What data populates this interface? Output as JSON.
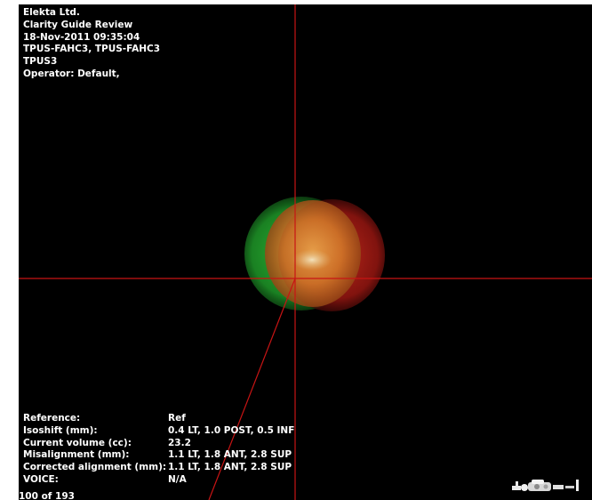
{
  "header": {
    "company": "Elekta Ltd.",
    "application": "Clarity Guide Review",
    "datetime": "18-Nov-2011 09:35:04",
    "patient_ids": "TPUS-FAHC3, TPUS-FAHC3",
    "session": "TPUS3",
    "operator": "Operator: Default,"
  },
  "status": {
    "rows": [
      {
        "label": "Reference:",
        "value": "Ref"
      },
      {
        "label": "Isoshift (mm):",
        "value": "0.4 LT, 1.0 POST, 0.5 INF"
      },
      {
        "label": "Current volume (cc):",
        "value": "23.2"
      },
      {
        "label": "Misalignment (mm):",
        "value": "1.1 LT, 1.8 ANT, 2.8 SUP"
      },
      {
        "label": "Corrected alignment (mm):",
        "value": "1.1 LT, 1.8 ANT, 2.8 SUP"
      },
      {
        "label": "VOICE:",
        "value": "N/A"
      }
    ]
  },
  "frame_counter": "100 of 193",
  "colors": {
    "background": "#000000",
    "crosshair": "#c81414",
    "reference_volume": "#1f9a2a",
    "current_volume": "#a51a12",
    "overlap_volume": "#c8641e",
    "text": "#ffffff"
  },
  "icons": {
    "view_cube": "orientation-indicator-icon"
  }
}
